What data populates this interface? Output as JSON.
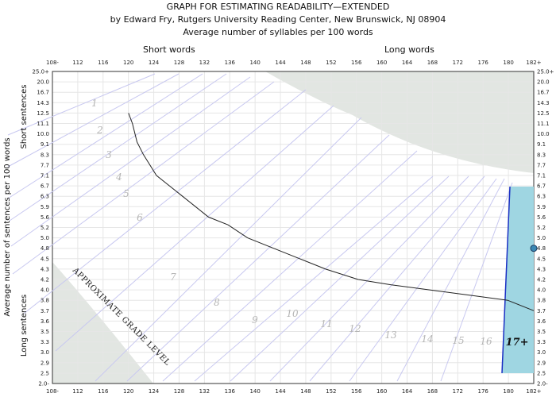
{
  "header": {
    "title": "GRAPH FOR ESTIMATING READABILITY—EXTENDED",
    "subtitle": "by Edward Fry, Rutgers University Reading Center, New Brunswick, NJ 08904",
    "xlabel": "Average number of syllables per 100 words",
    "short_words": "Short words",
    "long_words": "Long words"
  },
  "chart_data": {
    "type": "line",
    "title": "GRAPH FOR ESTIMATING READABILITY—EXTENDED",
    "xlabel": "Average number of syllables per 100 words",
    "ylabel": "Average number of sentences per 100 words",
    "y_side_top": "Short sentences",
    "y_side_bottom": "Long sentences",
    "x_ticks": [
      "108-",
      "112",
      "116",
      "120",
      "124",
      "128",
      "132",
      "136",
      "140",
      "144",
      "148",
      "152",
      "156",
      "160",
      "164",
      "168",
      "172",
      "176",
      "180",
      "182+"
    ],
    "y_ticks": [
      "25.0+",
      "20.0",
      "16.7",
      "14.3",
      "12.5",
      "11.1",
      "10.0",
      "9.1",
      "8.3",
      "7.7",
      "7.1",
      "6.7",
      "6.3",
      "5.9",
      "5.6",
      "5.2",
      "5.0",
      "4.8",
      "4.5",
      "4.3",
      "4.2",
      "4.0",
      "3.8",
      "3.7",
      "3.6",
      "3.5",
      "3.3",
      "3.0",
      "2.9",
      "2.5",
      "2.0-"
    ],
    "xlim": [
      108,
      182
    ],
    "grade_labels": [
      "1",
      "2",
      "3",
      "4",
      "5",
      "6",
      "7",
      "8",
      "9",
      "10",
      "11",
      "12",
      "13",
      "14",
      "15",
      "16",
      "17+"
    ],
    "grade_level_label": "APPROXIMATE GRADE LEVEL",
    "curve": {
      "x": [
        119.7,
        120.3,
        121,
        122,
        123,
        124,
        126,
        128,
        130,
        132,
        135,
        138,
        142,
        146,
        150,
        155,
        160,
        166,
        172,
        178,
        182
      ],
      "y": [
        12.5,
        11.1,
        9.3,
        8.3,
        7.7,
        7.1,
        6.7,
        6.3,
        5.9,
        5.6,
        5.3,
        5.0,
        4.8,
        4.5,
        4.3,
        4.2,
        4.1,
        4.0,
        3.9,
        3.8,
        3.7
      ]
    },
    "data_point": {
      "x": 182,
      "y": 4.8
    },
    "colors": {
      "invalid_region": "#e2e6e2",
      "grade_lines": "#c8c8f0",
      "curve": "#222222",
      "highlight": "#9fd6e2",
      "highlight_edge": "#1a2fc4",
      "point": "#3b87b3"
    }
  }
}
